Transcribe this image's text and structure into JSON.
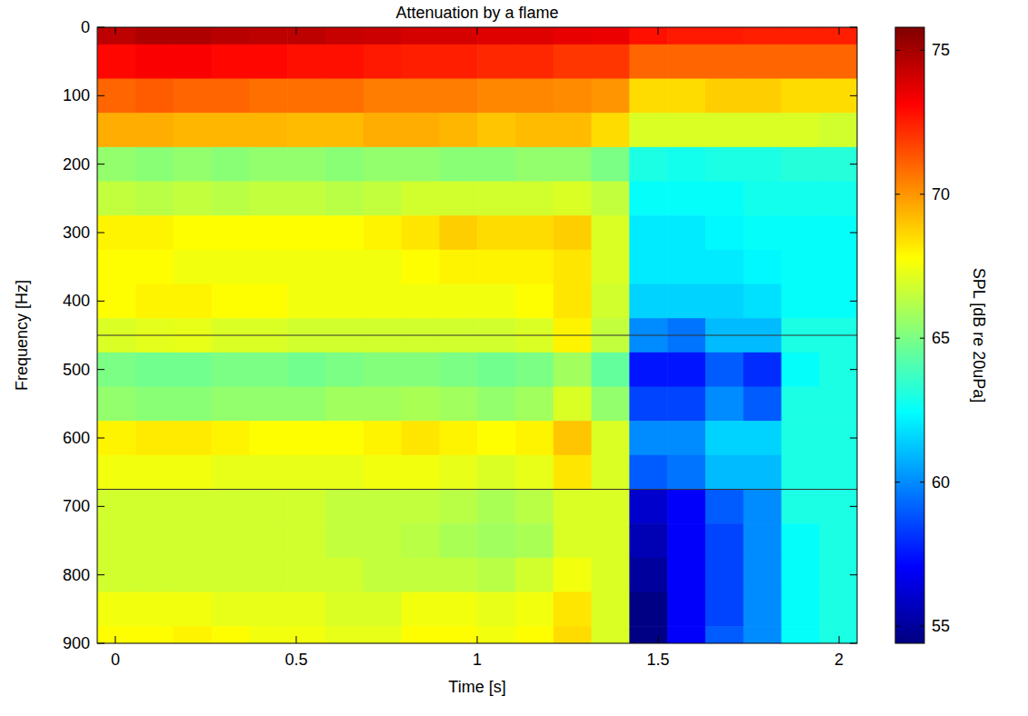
{
  "chart_data": {
    "type": "heatmap",
    "title": "Attenuation by a flame",
    "x_label": "Time [s]",
    "y_label": "Frequency [Hz]",
    "color": "jet",
    "xlim": [
      -0.05,
      2.05
    ],
    "ylim": [
      900,
      0
    ],
    "xticks": [
      0,
      0.5,
      1,
      1.5,
      2
    ],
    "yticks": [
      0,
      100,
      200,
      300,
      400,
      500,
      600,
      700,
      800,
      900
    ],
    "x": [
      0.003,
      0.108,
      0.213,
      0.318,
      0.423,
      0.528,
      0.633,
      0.738,
      0.843,
      0.948,
      1.053,
      1.158,
      1.263,
      1.368,
      1.473,
      1.578,
      1.683,
      1.788,
      1.893,
      1.998
    ],
    "y": [
      0,
      50,
      100,
      150,
      200,
      250,
      300,
      350,
      400,
      450,
      500,
      550,
      600,
      650,
      700,
      750,
      800,
      850,
      900
    ],
    "z": [
      [
        74.5,
        74.8,
        74.8,
        74.6,
        74.5,
        74.5,
        74.3,
        74.2,
        74.0,
        74.0,
        73.8,
        73.8,
        73.6,
        73.5,
        72.8,
        72.6,
        72.6,
        72.5,
        72.5,
        72.5
      ],
      [
        73.0,
        73.2,
        73.2,
        73.0,
        73.0,
        72.8,
        72.8,
        72.6,
        72.5,
        72.5,
        72.3,
        72.3,
        72.0,
        72.0,
        71.0,
        71.0,
        71.0,
        71.0,
        71.0,
        71.0
      ],
      [
        71.0,
        71.2,
        71.0,
        71.0,
        70.8,
        70.8,
        70.8,
        70.5,
        70.5,
        70.5,
        70.3,
        70.3,
        70.2,
        70.0,
        68.5,
        68.5,
        68.8,
        68.8,
        68.5,
        68.5
      ],
      [
        69.5,
        69.5,
        69.3,
        69.3,
        69.3,
        69.2,
        69.2,
        69.5,
        69.5,
        69.3,
        69.0,
        69.2,
        69.2,
        68.5,
        67.0,
        67.0,
        67.0,
        67.0,
        67.0,
        66.8
      ],
      [
        65.5,
        65.3,
        65.5,
        65.3,
        65.5,
        65.5,
        65.3,
        65.5,
        65.5,
        65.3,
        65.3,
        65.5,
        65.5,
        65.0,
        63.0,
        62.8,
        63.0,
        63.0,
        63.2,
        63.2
      ],
      [
        66.5,
        66.3,
        66.5,
        66.3,
        66.5,
        66.5,
        66.3,
        66.5,
        66.8,
        66.8,
        66.8,
        66.8,
        67.0,
        66.5,
        62.5,
        62.5,
        62.5,
        62.8,
        62.8,
        62.8
      ],
      [
        68.0,
        68.0,
        67.8,
        67.8,
        67.8,
        67.8,
        67.8,
        68.0,
        68.3,
        68.8,
        68.5,
        68.5,
        68.8,
        67.0,
        62.0,
        62.0,
        62.3,
        62.5,
        62.5,
        62.5
      ],
      [
        67.8,
        67.8,
        67.5,
        67.5,
        67.5,
        67.5,
        67.5,
        67.5,
        67.8,
        68.0,
        68.0,
        68.0,
        68.3,
        67.0,
        62.0,
        62.0,
        62.0,
        62.3,
        62.5,
        62.5
      ],
      [
        67.8,
        68.0,
        68.0,
        67.8,
        67.8,
        67.5,
        67.5,
        67.5,
        67.5,
        67.5,
        67.5,
        67.8,
        68.3,
        66.8,
        61.5,
        61.5,
        61.5,
        61.8,
        62.5,
        62.5
      ],
      [
        67.0,
        67.2,
        67.3,
        67.0,
        67.0,
        66.8,
        66.8,
        66.8,
        66.8,
        66.8,
        66.8,
        67.0,
        68.0,
        66.5,
        60.0,
        59.5,
        61.0,
        61.0,
        63.0,
        63.0
      ],
      [
        65.0,
        64.8,
        64.8,
        65.0,
        65.0,
        64.8,
        65.0,
        65.2,
        65.2,
        65.0,
        64.8,
        65.0,
        65.8,
        64.5,
        57.5,
        57.5,
        59.0,
        58.0,
        62.5,
        63.0
      ],
      [
        65.5,
        65.3,
        65.3,
        65.5,
        65.5,
        65.5,
        65.8,
        65.8,
        66.0,
        65.8,
        65.5,
        65.8,
        67.0,
        65.5,
        58.5,
        58.5,
        60.0,
        59.0,
        63.0,
        63.0
      ],
      [
        68.0,
        68.2,
        68.2,
        68.0,
        67.8,
        67.8,
        67.8,
        68.0,
        68.3,
        68.0,
        67.8,
        68.0,
        69.0,
        67.0,
        60.0,
        60.0,
        61.5,
        61.5,
        63.0,
        63.0
      ],
      [
        67.5,
        67.5,
        67.5,
        67.3,
        67.3,
        67.3,
        67.3,
        67.5,
        67.5,
        67.3,
        67.0,
        67.3,
        68.3,
        67.0,
        59.0,
        59.5,
        61.0,
        61.0,
        63.0,
        63.0
      ],
      [
        66.8,
        66.8,
        66.8,
        66.8,
        66.8,
        66.8,
        66.5,
        66.5,
        66.5,
        66.3,
        66.0,
        66.3,
        67.0,
        67.0,
        56.0,
        57.0,
        59.0,
        60.0,
        63.0,
        63.0
      ],
      [
        66.8,
        66.8,
        66.8,
        66.8,
        66.8,
        66.8,
        66.5,
        66.5,
        66.3,
        66.0,
        65.8,
        66.0,
        67.0,
        67.0,
        55.5,
        57.0,
        58.5,
        60.0,
        62.5,
        63.0
      ],
      [
        66.8,
        66.8,
        66.8,
        66.8,
        66.8,
        66.8,
        66.8,
        66.5,
        66.5,
        66.5,
        66.3,
        66.8,
        67.5,
        67.0,
        55.0,
        57.0,
        58.5,
        60.0,
        62.5,
        63.0
      ],
      [
        67.5,
        67.5,
        67.5,
        67.3,
        67.3,
        67.3,
        67.0,
        67.0,
        67.5,
        67.5,
        67.3,
        67.5,
        68.3,
        67.0,
        54.5,
        57.0,
        58.5,
        60.0,
        62.5,
        63.0
      ],
      [
        67.8,
        67.8,
        68.0,
        67.8,
        67.5,
        67.5,
        67.3,
        67.3,
        67.8,
        67.8,
        67.5,
        67.8,
        68.5,
        67.0,
        54.5,
        57.0,
        59.0,
        60.0,
        62.5,
        63.0
      ]
    ],
    "hlines": [
      450,
      675
    ],
    "colorbar": {
      "label": "SPL [dB re 20uPa]",
      "lim": [
        54.4,
        75.8
      ],
      "ticks": [
        55,
        60,
        65,
        70,
        75
      ]
    }
  }
}
